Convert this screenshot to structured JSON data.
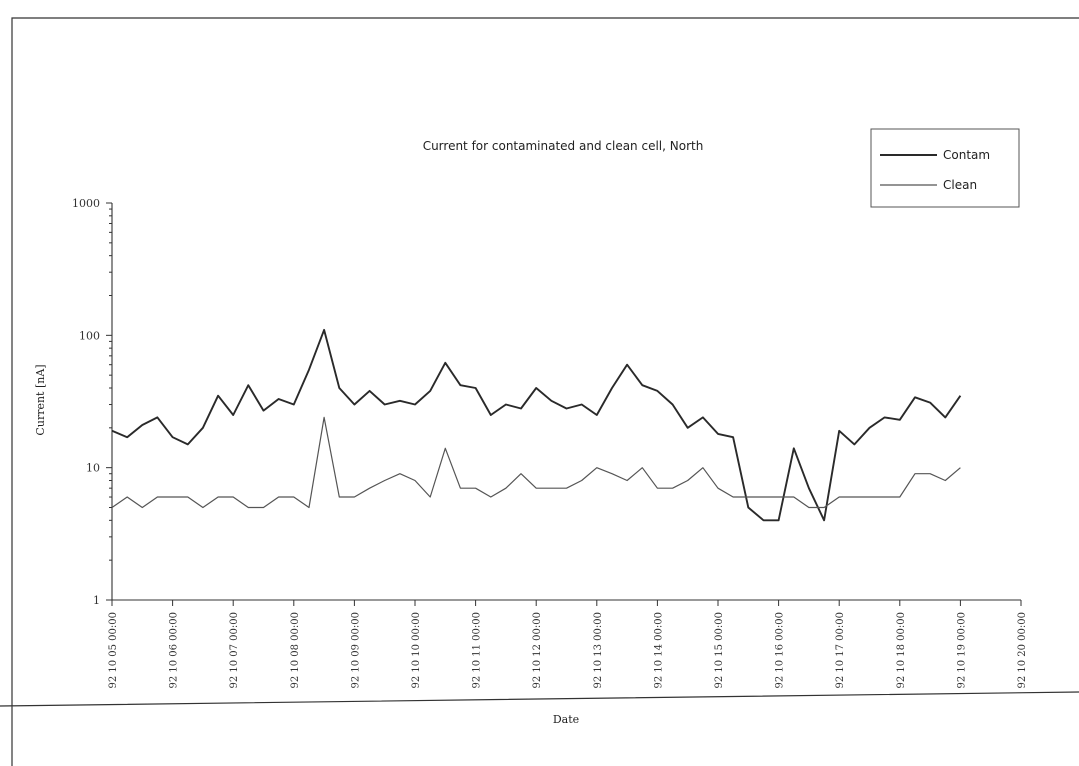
{
  "chart_data": {
    "type": "line",
    "title": "Current for contaminated and clean cell, North",
    "xlabel": "Date",
    "ylabel": "Current [nA]",
    "yscale": "log",
    "ylim": [
      1,
      1000
    ],
    "yticks": [
      "1",
      "10",
      "100",
      "1000"
    ],
    "xticks": [
      "92 10 05 00:00",
      "92 10 06 00:00",
      "92 10 07 00:00",
      "92 10 08 00:00",
      "92 10 09 00:00",
      "92 10 10 00:00",
      "92 10 11 00:00",
      "92 10 12 00:00",
      "92 10 13 00:00",
      "92 10 14 00:00",
      "92 10 15 00:00",
      "92 10 16 00:00",
      "92 10 17 00:00",
      "92 10 18 00:00",
      "92 10 19 00:00",
      "92 10 20 00:00"
    ],
    "legend_position": "top-right",
    "grid": false,
    "series": [
      {
        "name": "Contam",
        "color": "#2a2a2a",
        "x": [
          "92 10 05 00:00",
          "92 10 05 06:00",
          "92 10 05 12:00",
          "92 10 05 18:00",
          "92 10 06 00:00",
          "92 10 06 06:00",
          "92 10 06 12:00",
          "92 10 06 18:00",
          "92 10 07 00:00",
          "92 10 07 06:00",
          "92 10 07 12:00",
          "92 10 07 18:00",
          "92 10 08 00:00",
          "92 10 08 06:00",
          "92 10 08 12:00",
          "92 10 08 18:00",
          "92 10 09 00:00",
          "92 10 09 06:00",
          "92 10 09 12:00",
          "92 10 09 18:00",
          "92 10 10 00:00",
          "92 10 10 06:00",
          "92 10 10 12:00",
          "92 10 10 18:00",
          "92 10 11 00:00",
          "92 10 11 06:00",
          "92 10 11 12:00",
          "92 10 11 18:00",
          "92 10 12 00:00",
          "92 10 12 06:00",
          "92 10 12 12:00",
          "92 10 12 18:00",
          "92 10 13 00:00",
          "92 10 13 06:00",
          "92 10 13 12:00",
          "92 10 13 18:00",
          "92 10 14 00:00",
          "92 10 14 06:00",
          "92 10 14 12:00",
          "92 10 14 18:00",
          "92 10 15 00:00",
          "92 10 15 06:00",
          "92 10 15 12:00",
          "92 10 15 18:00",
          "92 10 16 00:00",
          "92 10 16 06:00",
          "92 10 16 12:00",
          "92 10 16 18:00",
          "92 10 17 00:00",
          "92 10 17 06:00",
          "92 10 17 12:00",
          "92 10 17 18:00",
          "92 10 18 00:00",
          "92 10 18 06:00",
          "92 10 18 12:00",
          "92 10 18 18:00",
          "92 10 19 00:00"
        ],
        "values": [
          19,
          17,
          21,
          24,
          17,
          15,
          20,
          35,
          25,
          42,
          27,
          33,
          30,
          55,
          110,
          40,
          30,
          38,
          30,
          32,
          30,
          38,
          62,
          42,
          40,
          25,
          30,
          28,
          40,
          32,
          28,
          30,
          25,
          40,
          60,
          42,
          38,
          30,
          20,
          24,
          18,
          17,
          5,
          4,
          4,
          14,
          7,
          4,
          19,
          15,
          20,
          24,
          23,
          34,
          31,
          24,
          35
        ]
      },
      {
        "name": "Clean",
        "color": "#555555",
        "x": [
          "92 10 05 00:00",
          "92 10 05 06:00",
          "92 10 05 12:00",
          "92 10 05 18:00",
          "92 10 06 00:00",
          "92 10 06 06:00",
          "92 10 06 12:00",
          "92 10 06 18:00",
          "92 10 07 00:00",
          "92 10 07 06:00",
          "92 10 07 12:00",
          "92 10 07 18:00",
          "92 10 08 00:00",
          "92 10 08 06:00",
          "92 10 08 12:00",
          "92 10 08 18:00",
          "92 10 09 00:00",
          "92 10 09 06:00",
          "92 10 09 12:00",
          "92 10 09 18:00",
          "92 10 10 00:00",
          "92 10 10 06:00",
          "92 10 10 12:00",
          "92 10 10 18:00",
          "92 10 11 00:00",
          "92 10 11 06:00",
          "92 10 11 12:00",
          "92 10 11 18:00",
          "92 10 12 00:00",
          "92 10 12 06:00",
          "92 10 12 12:00",
          "92 10 12 18:00",
          "92 10 13 00:00",
          "92 10 13 06:00",
          "92 10 13 12:00",
          "92 10 13 18:00",
          "92 10 14 00:00",
          "92 10 14 06:00",
          "92 10 14 12:00",
          "92 10 14 18:00",
          "92 10 15 00:00",
          "92 10 15 06:00",
          "92 10 15 12:00",
          "92 10 15 18:00",
          "92 10 16 00:00",
          "92 10 16 06:00",
          "92 10 16 12:00",
          "92 10 16 18:00",
          "92 10 17 00:00",
          "92 10 17 06:00",
          "92 10 17 12:00",
          "92 10 17 18:00",
          "92 10 18 00:00",
          "92 10 18 06:00",
          "92 10 18 12:00",
          "92 10 18 18:00",
          "92 10 19 00:00"
        ],
        "values": [
          5,
          6,
          5,
          6,
          6,
          6,
          5,
          6,
          6,
          5,
          5,
          6,
          6,
          5,
          24,
          6,
          6,
          7,
          8,
          9,
          8,
          6,
          14,
          7,
          7,
          6,
          7,
          9,
          7,
          7,
          7,
          8,
          10,
          9,
          8,
          10,
          7,
          7,
          8,
          10,
          7,
          6,
          6,
          6,
          6,
          6,
          5,
          5,
          6,
          6,
          6,
          6,
          6,
          9,
          9,
          8,
          10
        ]
      }
    ]
  }
}
